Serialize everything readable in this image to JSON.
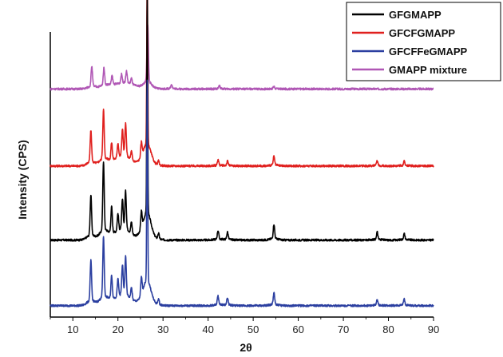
{
  "chart_data": {
    "type": "line",
    "title": "",
    "xlabel": "2θ",
    "ylabel": "Intensity (CPS)",
    "xlim": [
      5,
      90
    ],
    "xticks": [
      10,
      20,
      30,
      40,
      50,
      60,
      70,
      80,
      90
    ],
    "grid": false,
    "legend_position": "top-right",
    "series": [
      {
        "name": "GFGMAPP",
        "color": "#000000",
        "baseline": 27,
        "peaks": [
          [
            14.0,
            14
          ],
          [
            16.8,
            24
          ],
          [
            18.6,
            9
          ],
          [
            20.0,
            6
          ],
          [
            21.0,
            10
          ],
          [
            21.7,
            13
          ],
          [
            23.0,
            4
          ],
          [
            25.2,
            6
          ],
          [
            26.5,
            77
          ],
          [
            29.0,
            2
          ],
          [
            42.2,
            3
          ],
          [
            44.3,
            2.5
          ],
          [
            54.6,
            5
          ],
          [
            77.5,
            2.5
          ],
          [
            83.5,
            2
          ]
        ]
      },
      {
        "name": "GFCFGMAPP",
        "color": "#e0201e",
        "baseline": 53,
        "peaks": [
          [
            14.0,
            11
          ],
          [
            16.8,
            17
          ],
          [
            18.6,
            6
          ],
          [
            20.0,
            5
          ],
          [
            21.0,
            9
          ],
          [
            21.7,
            11
          ],
          [
            23.0,
            3
          ],
          [
            25.2,
            5
          ],
          [
            26.5,
            61
          ],
          [
            29.0,
            1.5
          ],
          [
            42.2,
            2
          ],
          [
            44.3,
            1.5
          ],
          [
            54.6,
            3
          ],
          [
            77.5,
            1.5
          ],
          [
            83.5,
            1.5
          ]
        ]
      },
      {
        "name": "GFCFFeGMAPP",
        "color": "#2b3fa0",
        "baseline": 4,
        "peaks": [
          [
            14.0,
            14
          ],
          [
            16.8,
            21
          ],
          [
            18.6,
            8
          ],
          [
            20.0,
            6
          ],
          [
            21.0,
            10
          ],
          [
            21.7,
            13
          ],
          [
            23.0,
            4
          ],
          [
            25.2,
            6
          ],
          [
            26.5,
            70
          ],
          [
            29.0,
            2
          ],
          [
            42.2,
            3
          ],
          [
            44.3,
            2.5
          ],
          [
            54.6,
            4
          ],
          [
            77.5,
            2
          ],
          [
            83.5,
            2
          ]
        ]
      },
      {
        "name": "GMAPP mixture",
        "color": "#b057b5",
        "baseline": 80,
        "peaks": [
          [
            14.2,
            7
          ],
          [
            16.9,
            6
          ],
          [
            18.7,
            3
          ],
          [
            20.8,
            3
          ],
          [
            21.9,
            4
          ],
          [
            23.0,
            2
          ],
          [
            26.6,
            20
          ],
          [
            31.9,
            1.5
          ],
          [
            42.5,
            1
          ],
          [
            54.6,
            0.8
          ]
        ]
      }
    ]
  }
}
